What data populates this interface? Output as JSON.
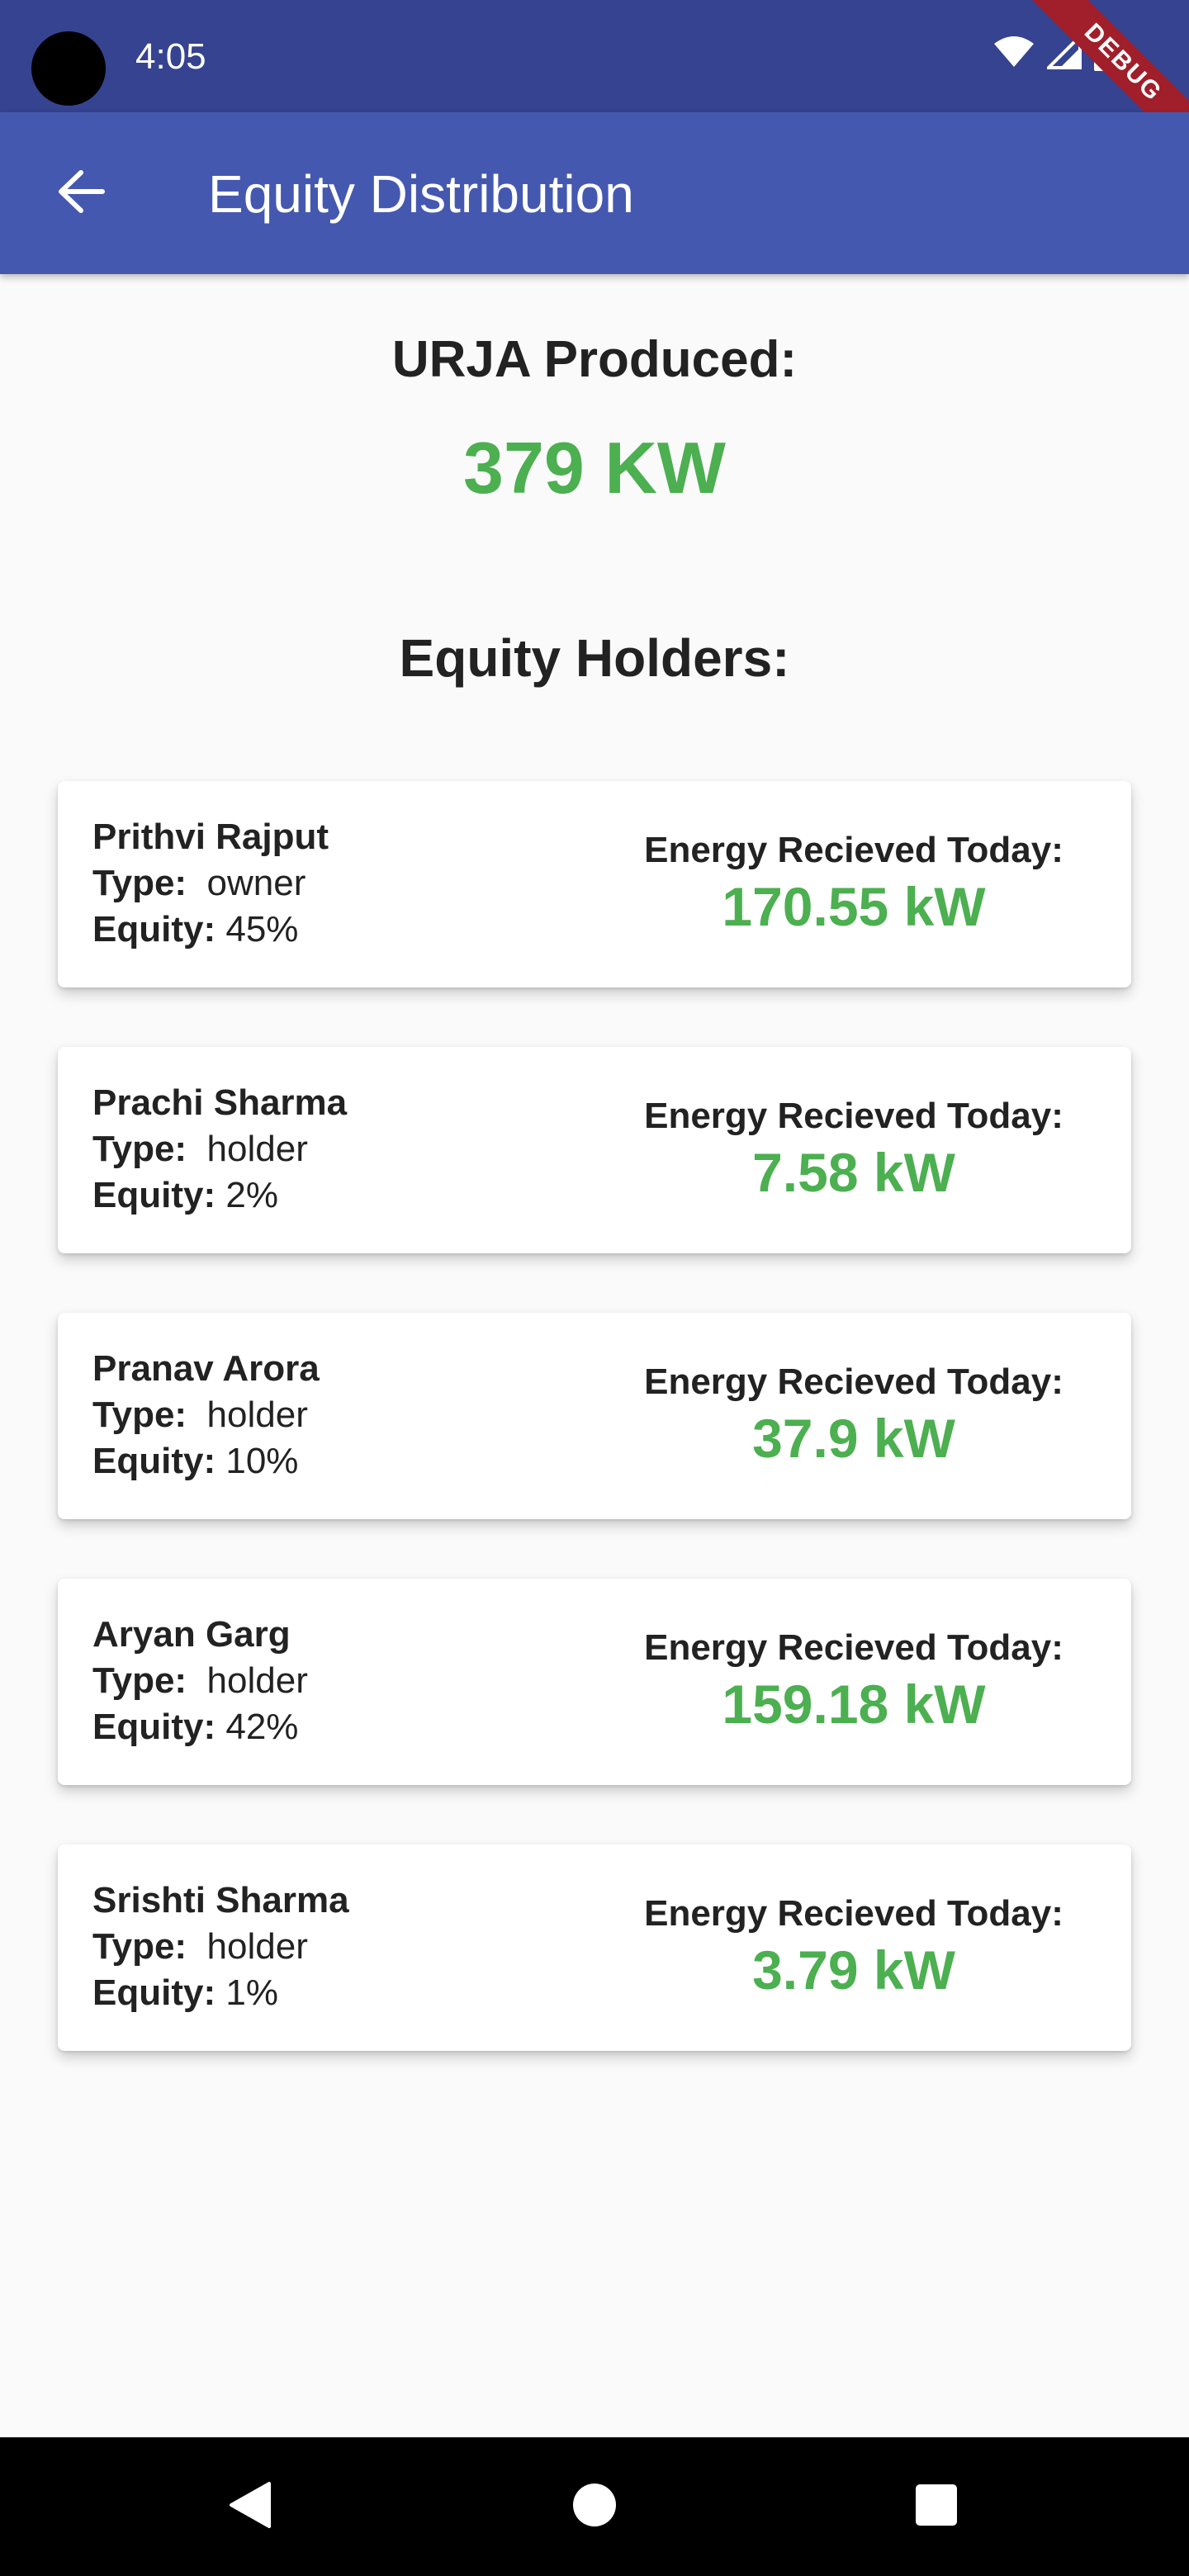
{
  "status_bar": {
    "time": "4:05",
    "icons": [
      "wifi-icon",
      "signal-icon",
      "battery-icon"
    ],
    "debug_banner": "DEBUG"
  },
  "app_bar": {
    "title": "Equity Distribution",
    "back_icon": "arrow-back-icon"
  },
  "summary": {
    "label": "URJA Produced:",
    "value": "379 KW"
  },
  "holders_heading": "Equity Holders:",
  "field_labels": {
    "type": "Type:",
    "equity": "Equity:",
    "energy": "Energy Recieved Today:"
  },
  "holders": [
    {
      "name": "Prithvi Rajput",
      "type": "owner",
      "equity": "45%",
      "energy": "170.55 kW"
    },
    {
      "name": "Prachi Sharma",
      "type": "holder",
      "equity": "2%",
      "energy": "7.58 kW"
    },
    {
      "name": "Pranav Arora",
      "type": "holder",
      "equity": "10%",
      "energy": "37.9 kW"
    },
    {
      "name": "Aryan Garg",
      "type": "holder",
      "equity": "42%",
      "energy": "159.18 kW"
    },
    {
      "name": "Srishti Sharma",
      "type": "holder",
      "equity": "1%",
      "energy": "3.79 kW"
    }
  ],
  "nav_bar": {
    "icons": [
      "back-triangle-icon",
      "home-circle-icon",
      "recents-square-icon"
    ]
  },
  "colors": {
    "status_bar": "#354390",
    "app_bar": "#4558b0",
    "accent_green": "#4caf50",
    "background": "#fafafa"
  }
}
